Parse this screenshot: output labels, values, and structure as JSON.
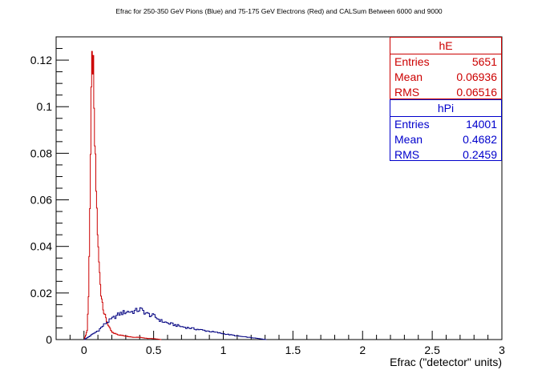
{
  "chart_data": {
    "type": "line",
    "title": "Efrac for 250-350 GeV Pions (Blue) and 75-175 GeV Electrons (Red) and CALSum Between 6000 and 9000",
    "xlabel": "Efrac (\"detector\" units)",
    "ylabel": "",
    "xlim": [
      -0.2,
      3.0
    ],
    "ylim": [
      0,
      0.13
    ],
    "x_ticks": [
      "0",
      "0.5",
      "1",
      "1.5",
      "2",
      "2.5",
      "3"
    ],
    "y_ticks": [
      "0",
      "0.02",
      "0.04",
      "0.06",
      "0.08",
      "0.1",
      "0.12"
    ],
    "grid": false,
    "legend": "top-right stat boxes",
    "series": [
      {
        "name": "hE",
        "color": "#cc0000",
        "x": [
          0.0,
          0.02,
          0.03,
          0.04,
          0.05,
          0.055,
          0.06,
          0.065,
          0.07,
          0.08,
          0.09,
          0.1,
          0.11,
          0.12,
          0.14,
          0.16,
          0.18,
          0.2,
          0.25,
          0.3,
          0.35,
          0.4,
          0.45,
          0.5,
          0.55
        ],
        "y": [
          0.0,
          0.004,
          0.018,
          0.058,
          0.1,
          0.117,
          0.121,
          0.112,
          0.094,
          0.074,
          0.055,
          0.038,
          0.028,
          0.02,
          0.012,
          0.008,
          0.005,
          0.003,
          0.002,
          0.0015,
          0.001,
          0.001,
          0.0005,
          0.0004,
          0.0
        ]
      },
      {
        "name": "hPi",
        "color": "#000080",
        "x": [
          0.0,
          0.05,
          0.1,
          0.15,
          0.2,
          0.25,
          0.3,
          0.35,
          0.4,
          0.45,
          0.5,
          0.55,
          0.6,
          0.7,
          0.8,
          0.9,
          1.0,
          1.1,
          1.2,
          1.3
        ],
        "y": [
          0.0,
          0.002,
          0.004,
          0.007,
          0.009,
          0.011,
          0.012,
          0.012,
          0.013,
          0.011,
          0.01,
          0.008,
          0.007,
          0.0055,
          0.0045,
          0.0035,
          0.0025,
          0.0015,
          0.0008,
          0.0
        ]
      }
    ]
  },
  "statboxes": [
    {
      "name": "hE",
      "color": "#cc0000",
      "rows": [
        {
          "label": "Entries",
          "value": "5651"
        },
        {
          "label": "Mean",
          "value": "0.06936"
        },
        {
          "label": "RMS",
          "value": "0.06516"
        }
      ]
    },
    {
      "name": "hPi",
      "color": "#0000cc",
      "rows": [
        {
          "label": "Entries",
          "value": "14001"
        },
        {
          "label": "Mean",
          "value": "0.4682"
        },
        {
          "label": "RMS",
          "value": "0.2459"
        }
      ]
    }
  ]
}
